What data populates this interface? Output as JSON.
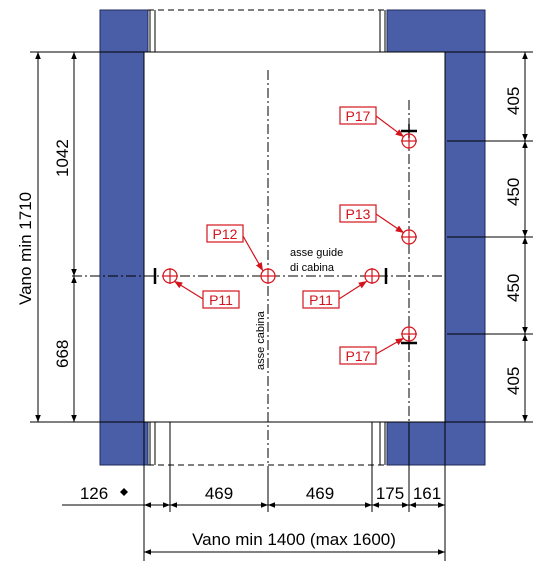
{
  "labels": {
    "shaft_width": "Vano min 1400 (max 1600)",
    "shaft_depth": "Vano min 1710",
    "car_axis": "asse cabina",
    "guide_axis_line1": "asse guide",
    "guide_axis_line2": "di cabina"
  },
  "dims": {
    "left_clearance": "126",
    "left_half": "469",
    "right_half": "469",
    "d175": "175",
    "d161": "161",
    "front_depth": "1042",
    "rear_depth": "668",
    "r405_top": "405",
    "r450_top": "450",
    "r450_bottom": "450",
    "r405_bottom": "405"
  },
  "tags": {
    "p17_top": "P17",
    "p13": "P13",
    "p12": "P12",
    "p11_left": "P11",
    "p11_right": "P11",
    "p17_bottom": "P17"
  },
  "colors": {
    "wall": "#4a5ea8",
    "tag": "#d3141c"
  }
}
